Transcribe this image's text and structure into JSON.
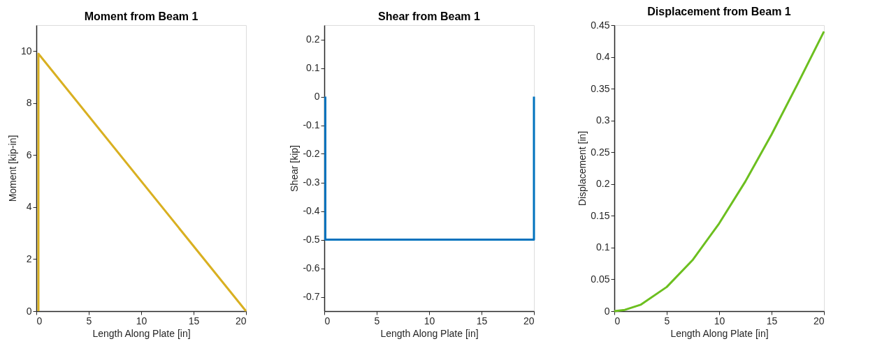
{
  "chart_data": [
    {
      "type": "line",
      "title": "Moment from Beam 1",
      "xlabel": "Length Along Plate [in]",
      "ylabel": "Moment [kip-in]",
      "xlim": [
        0,
        20
      ],
      "xticks": [
        0,
        5,
        10,
        15,
        20
      ],
      "ylim": [
        0,
        11
      ],
      "yticks": [
        0,
        2,
        4,
        6,
        8,
        10
      ],
      "grid": false,
      "marker": "none",
      "line_style": "solid",
      "series": [
        {
          "color": "#d9b021",
          "x": [
            0.2,
            0.2,
            20
          ],
          "values": [
            0,
            9.9,
            0
          ]
        }
      ]
    },
    {
      "type": "line",
      "title": "Shear from Beam 1",
      "xlabel": "Length Along Plate [in]",
      "ylabel": "Shear [kip]",
      "xlim": [
        0,
        20
      ],
      "xticks": [
        0,
        5,
        10,
        15,
        20
      ],
      "ylim": [
        -0.75,
        0.25
      ],
      "yticks": [
        -0.7,
        -0.6,
        -0.5,
        -0.4,
        -0.3,
        -0.2,
        -0.1,
        0,
        0.1,
        0.2
      ],
      "grid": false,
      "marker": "none",
      "line_style": "solid",
      "series": [
        {
          "color": "#0072bd",
          "x": [
            0.1,
            0.1,
            20,
            20
          ],
          "values": [
            0,
            -0.5,
            -0.5,
            0
          ]
        }
      ]
    },
    {
      "type": "line",
      "title": "Displacement from Beam 1",
      "xlabel": "Length Along Plate [in]",
      "ylabel": "Displacement [in]",
      "xlim": [
        0,
        20
      ],
      "xticks": [
        0,
        5,
        10,
        15,
        20
      ],
      "ylim": [
        0,
        0.45
      ],
      "yticks": [
        0,
        0.05,
        0.1,
        0.15,
        0.2,
        0.25,
        0.3,
        0.35,
        0.4,
        0.45
      ],
      "grid": false,
      "marker": "none",
      "line_style": "solid",
      "series": [
        {
          "color": "#6cbf1f",
          "x": [
            0,
            1,
            2.5,
            5,
            7.5,
            10,
            12.5,
            15,
            17.5,
            20
          ],
          "values": [
            0,
            0.002,
            0.01,
            0.038,
            0.081,
            0.138,
            0.204,
            0.278,
            0.358,
            0.44
          ]
        }
      ]
    }
  ]
}
